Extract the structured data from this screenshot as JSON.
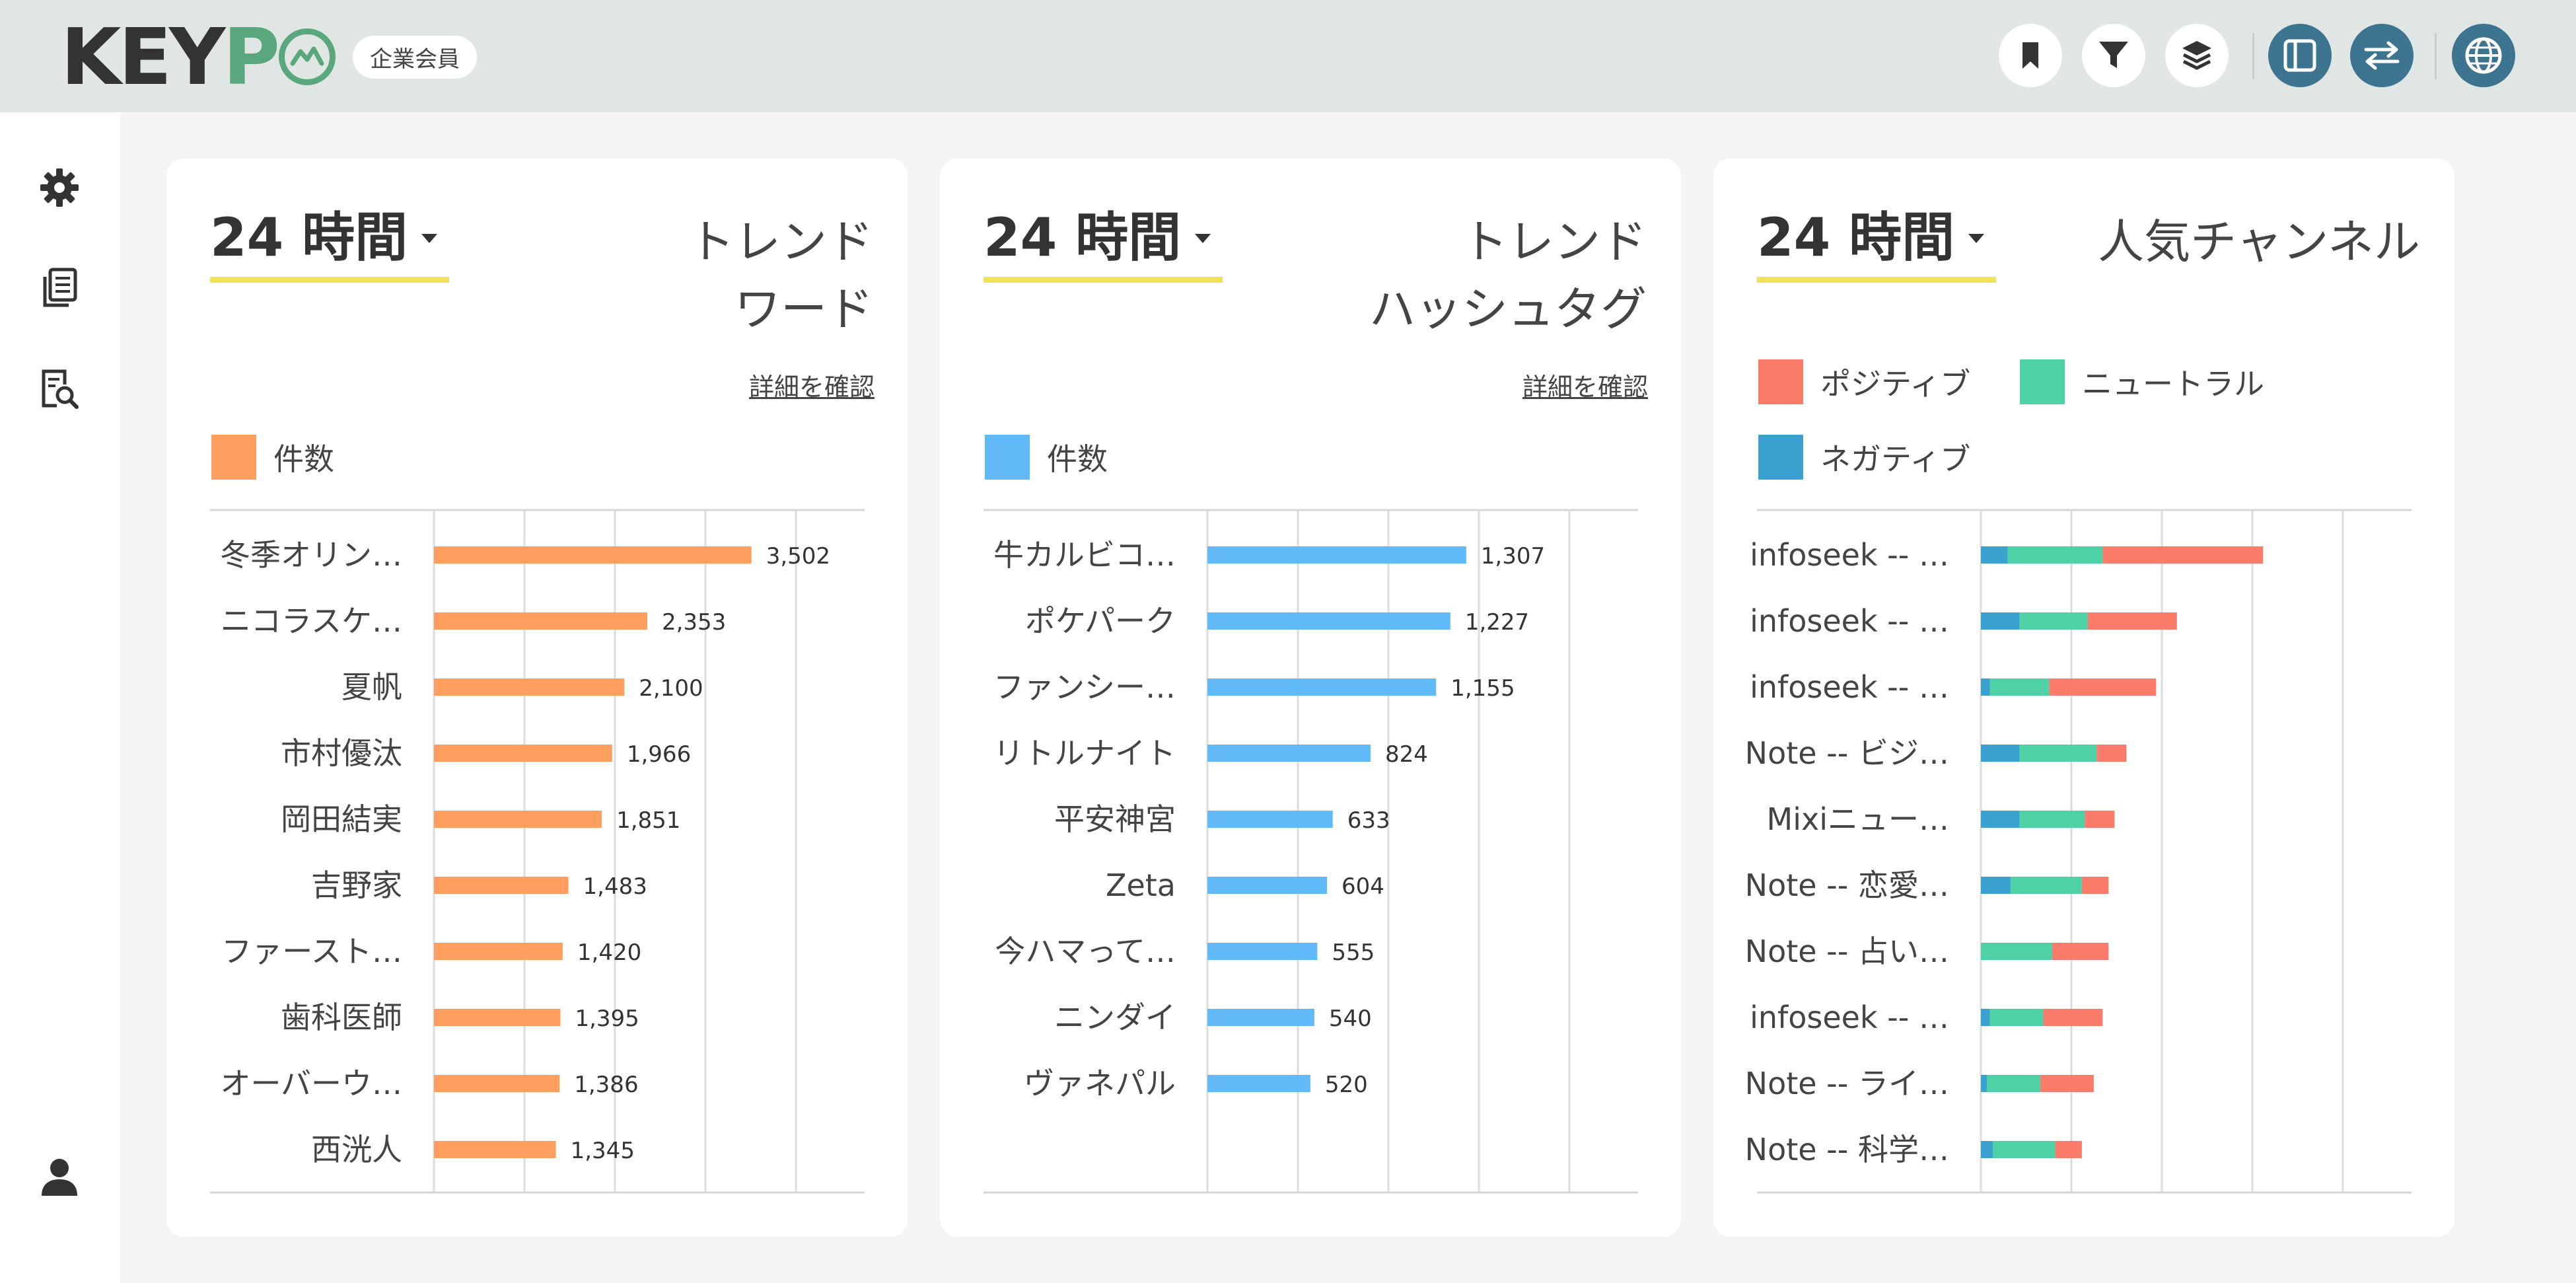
{
  "app": {
    "logo_text": "KEYPO",
    "member_badge": "企業会員"
  },
  "header_buttons": [
    {
      "name": "bookmark-icon"
    },
    {
      "name": "filter-icon"
    },
    {
      "name": "layers-icon"
    },
    {
      "name": "panel-toggle-icon"
    },
    {
      "name": "swap-icon"
    },
    {
      "name": "globe-icon"
    }
  ],
  "sidebar": {
    "items": [
      {
        "name": "settings-icon"
      },
      {
        "name": "documents-icon"
      },
      {
        "name": "document-search-icon"
      },
      {
        "name": "user-icon"
      }
    ]
  },
  "cards": [
    {
      "period": "24 時間",
      "title": "トレンド\nワード",
      "detail_link": "詳細を確認",
      "legend": [
        {
          "label": "件数",
          "color": "#ff9f5f"
        }
      ]
    },
    {
      "period": "24 時間",
      "title": "トレンド\nハッシュタグ",
      "detail_link": "詳細を確認",
      "legend": [
        {
          "label": "件数",
          "color": "#62b9f7"
        }
      ]
    },
    {
      "period": "24 時間",
      "title": "人気チャンネル",
      "legend": [
        {
          "label": "ポジティブ",
          "color": "#fb7b6b"
        },
        {
          "label": "ニュートラル",
          "color": "#4fd1a8"
        },
        {
          "label": "ネガティブ",
          "color": "#3ba1cf"
        }
      ]
    }
  ],
  "chart_data": [
    {
      "type": "bar",
      "orientation": "horizontal",
      "categories": [
        "冬季オリン…",
        "ニコラスケ…",
        "夏帆",
        "市村優汰",
        "岡田結実",
        "吉野家",
        "ファースト…",
        "歯科医師",
        "オーバーウ…",
        "西洸人"
      ],
      "series": [
        {
          "name": "件数",
          "values": [
            3502,
            2353,
            2100,
            1966,
            1851,
            1483,
            1420,
            1395,
            1386,
            1345
          ],
          "color": "#ff9f5f"
        }
      ],
      "value_labels": [
        "3,502",
        "2,353",
        "2,100",
        "1,966",
        "1,851",
        "1,483",
        "1,420",
        "1,395",
        "1,386",
        "1,345"
      ],
      "xlim": [
        0,
        4750
      ],
      "grid": true
    },
    {
      "type": "bar",
      "orientation": "horizontal",
      "categories": [
        "牛カルビコ…",
        "ポケパーク",
        "ファンシー…",
        "リトルナイト",
        "平安神宮",
        "Zeta",
        "今ハマって…",
        "ニンダイ",
        "ヴァネパル"
      ],
      "series": [
        {
          "name": "件数",
          "values": [
            1307,
            1227,
            1155,
            824,
            633,
            604,
            555,
            540,
            520
          ],
          "color": "#62b9f7"
        }
      ],
      "value_labels": [
        "1,307",
        "1,227",
        "1,155",
        "824",
        "633",
        "604",
        "555",
        "540",
        "520"
      ],
      "xlim": [
        0,
        2175
      ],
      "grid": true
    },
    {
      "type": "bar",
      "orientation": "horizontal",
      "stacked": true,
      "categories": [
        "infoseek -- …",
        "infoseek -- …",
        "infoseek -- …",
        "Note -- ビジ…",
        "Mixiニュー…",
        "Note -- 恋愛…",
        "Note -- 占い…",
        "infoseek -- …",
        "Note -- ライ…",
        "Note -- 科学…"
      ],
      "series": [
        {
          "name": "ネガティブ",
          "values": [
            9,
            13,
            3,
            13,
            13,
            10,
            0,
            3,
            2,
            4
          ],
          "color": "#3ba1cf"
        },
        {
          "name": "ニュートラル",
          "values": [
            32,
            23,
            20,
            26,
            22,
            24,
            24,
            18,
            18,
            21
          ],
          "color": "#4fd1a8"
        },
        {
          "name": "ポジティブ",
          "values": [
            54,
            30,
            36,
            10,
            10,
            9,
            19,
            20,
            18,
            9
          ],
          "color": "#fb7b6b"
        }
      ],
      "xlim": [
        0,
        145
      ],
      "grid": true
    }
  ]
}
